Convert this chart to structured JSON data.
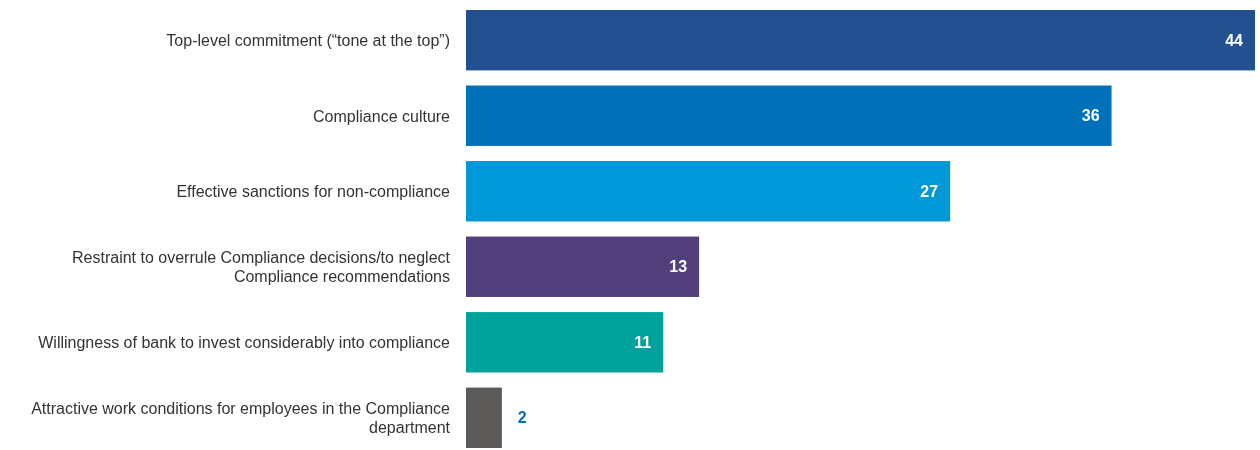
{
  "chart_data": {
    "type": "bar",
    "orientation": "horizontal",
    "data_labels": true,
    "categories": [
      "Top-level commitment (“tone at the top”)",
      "Compliance culture",
      "Effective sanctions for non-compliance",
      "Restraint to overrule Compliance decisions/to neglect Compliance recommendations",
      "Willingness of bank to invest considerably into compliance",
      "Attractive work conditions for employees in the Compliance department"
    ],
    "values": [
      44,
      36,
      27,
      13,
      11,
      2
    ],
    "colors": [
      "#23508f",
      "#0070b8",
      "#0098d6",
      "#51407b",
      "#00a39b",
      "#5c5a58"
    ]
  }
}
